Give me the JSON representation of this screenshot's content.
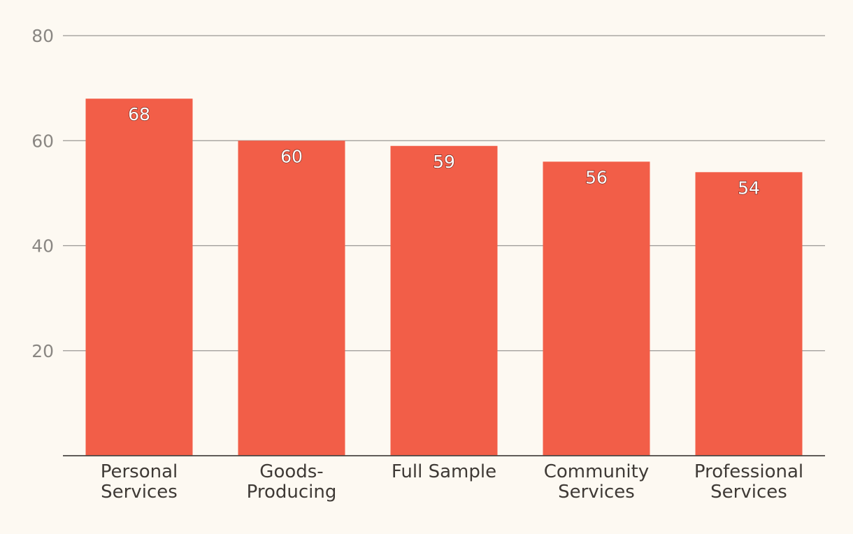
{
  "chart_data": {
    "type": "bar",
    "categories": [
      [
        "Personal",
        "Services"
      ],
      [
        "Goods-",
        "Producing"
      ],
      [
        "Full Sample"
      ],
      [
        "Community",
        "Services"
      ],
      [
        "Professional",
        "Services"
      ]
    ],
    "values": [
      68,
      60,
      59,
      56,
      54
    ],
    "title": "",
    "xlabel": "",
    "ylabel": "",
    "ylim": [
      0,
      80
    ],
    "yticks": [
      20,
      40,
      60,
      80
    ],
    "grid": true,
    "colors": {
      "bar": "#f25e48",
      "grid": "#9a9794",
      "axis": "#4a4643",
      "background": "#fdf9f2"
    }
  }
}
